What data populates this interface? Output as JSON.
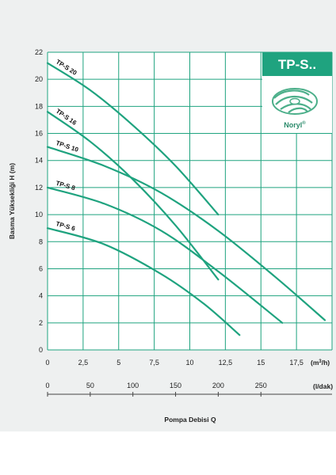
{
  "page": {
    "background": "#ffffff"
  },
  "colors": {
    "curve": "#1fa37f",
    "grid": "#1fa37f",
    "badge": "#1fa37f",
    "band": "#eef0f0",
    "impeller": "#4caf8a"
  },
  "badge": {
    "title": "TP-S..",
    "brand": "Noryl",
    "brand_mark": "®",
    "icon": "impeller-icon"
  },
  "axes": {
    "ylabel": "Basma Yüksekliği H (m)",
    "xlabel": "Pompa Debisi Q",
    "x_unit_base": "(m",
    "x_unit_sup": "3",
    "x_unit_end": "/h)",
    "x2_unit": "(l/dak)"
  },
  "chart_data": {
    "type": "line",
    "title": "TP-S..",
    "xlabel": "Pompa Debisi Q",
    "ylabel": "Basma Yüksekliği H (m)",
    "x_unit": "m3/h",
    "xlim": [
      0,
      20
    ],
    "ylim": [
      0,
      22
    ],
    "x_ticks": [
      "0",
      "2,5",
      "5",
      "7,5",
      "10",
      "12,5",
      "15",
      "17,5"
    ],
    "y_ticks": [
      "0",
      "2",
      "4",
      "6",
      "8",
      "10",
      "12",
      "14",
      "16",
      "18",
      "20",
      "22"
    ],
    "secondary_x": {
      "unit": "l/dak",
      "ticks": [
        "0",
        "50",
        "100",
        "150",
        "200",
        "250"
      ],
      "values": [
        0,
        50,
        100,
        150,
        200,
        250
      ]
    },
    "grid": true,
    "series": [
      {
        "name": "TP-S 20",
        "x": [
          0,
          3,
          6,
          9,
          12
        ],
        "y": [
          21.2,
          19.2,
          16.6,
          13.6,
          10.0
        ]
      },
      {
        "name": "TP-S 16",
        "x": [
          0,
          3,
          6,
          9,
          12
        ],
        "y": [
          17.6,
          15.4,
          12.6,
          9.2,
          5.2
        ]
      },
      {
        "name": "TP-S 10",
        "x": [
          0,
          4,
          8,
          12,
          16,
          19.5
        ],
        "y": [
          15.0,
          13.6,
          11.6,
          8.8,
          5.4,
          2.2
        ]
      },
      {
        "name": "TP-S 8",
        "x": [
          0,
          4,
          8,
          12,
          16.5
        ],
        "y": [
          12.0,
          10.8,
          8.8,
          5.8,
          2.0
        ]
      },
      {
        "name": "TP-S 6",
        "x": [
          0,
          4,
          8,
          11,
          13.5
        ],
        "y": [
          9.0,
          7.8,
          5.6,
          3.4,
          1.1
        ]
      }
    ]
  }
}
